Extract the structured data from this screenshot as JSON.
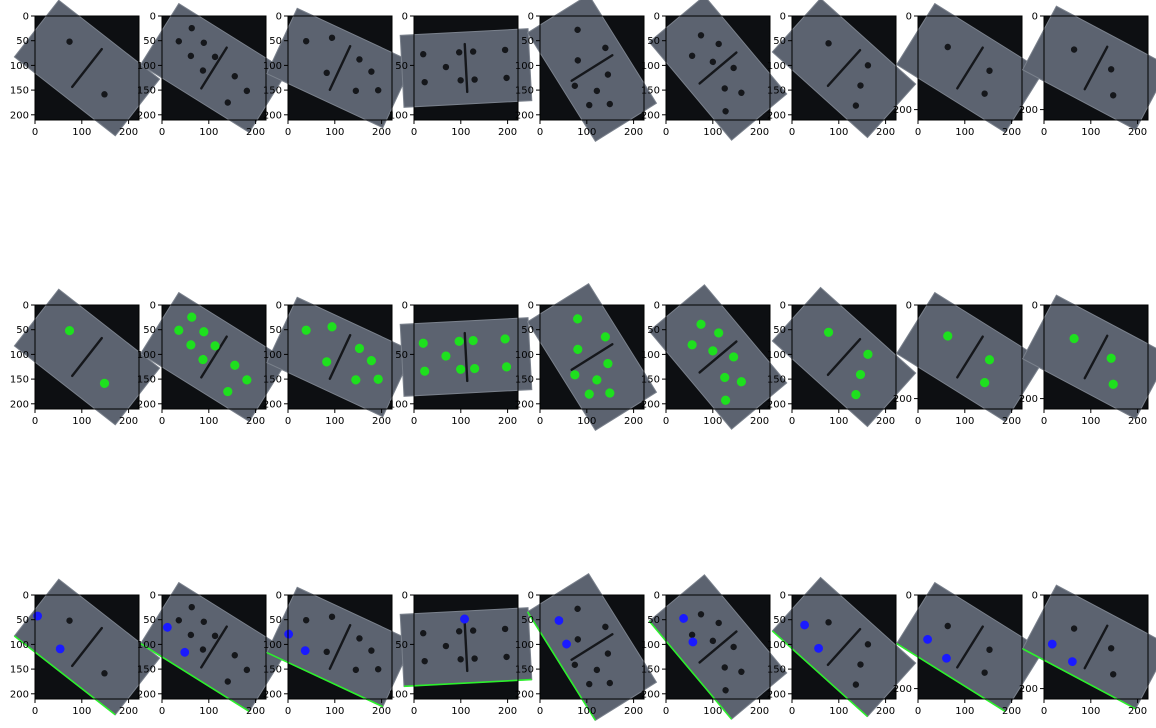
{
  "figure": {
    "rows": [
      "original",
      "pips-detected",
      "edge-and-points"
    ],
    "tiles": [
      {
        "ticks_x": [
          "0",
          "100",
          "200"
        ],
        "ticks_y": [
          "50",
          "100",
          "150",
          "200"
        ],
        "y_first_label": "0",
        "angle": 38,
        "pips": [
          [
            -30,
            -10
          ],
          [
            30,
            10
          ]
        ]
      },
      {
        "ticks_x": [
          "0",
          "100",
          "200"
        ],
        "ticks_y": [
          "50",
          "100",
          "150",
          "200"
        ],
        "y_first_label": "0",
        "angle": 32,
        "pips": [
          [
            -40,
            -22
          ],
          [
            -22,
            -16
          ],
          [
            -5,
            -10
          ],
          [
            -44,
            -4
          ],
          [
            -26,
            2
          ],
          [
            -8,
            8
          ],
          [
            22,
            -4
          ],
          [
            40,
            2
          ],
          [
            30,
            22
          ]
        ]
      },
      {
        "ticks_x": [
          "0",
          "100",
          "200"
        ],
        "ticks_y": [
          "50",
          "100",
          "150",
          "200"
        ],
        "y_first_label": "0",
        "angle": 25,
        "pips": [
          [
            -42,
            -10
          ],
          [
            -20,
            -24
          ],
          [
            -10,
            10
          ],
          [
            14,
            -16
          ],
          [
            30,
            -10
          ],
          [
            24,
            14
          ],
          [
            44,
            4
          ]
        ]
      },
      {
        "ticks_x": [
          "0",
          "100",
          "200"
        ],
        "ticks_y": [
          "50",
          "100"
        ],
        "y_first_label": "0",
        "angle": -3,
        "pips": [
          [
            -42,
            -16
          ],
          [
            -42,
            12
          ],
          [
            -20,
            -2
          ],
          [
            -6,
            -16
          ],
          [
            -6,
            12
          ],
          [
            8,
            -16
          ],
          [
            8,
            12
          ],
          [
            40,
            -16
          ],
          [
            40,
            12
          ]
        ]
      },
      {
        "ticks_x": [
          "0",
          "100",
          "200"
        ],
        "ticks_y": [
          "50",
          "100",
          "150",
          "200"
        ],
        "y_first_label": "0",
        "angle": 58,
        "pips": [
          [
            -40,
            -8
          ],
          [
            -10,
            -22
          ],
          [
            -14,
            8
          ],
          [
            14,
            -10
          ],
          [
            22,
            8
          ],
          [
            6,
            24
          ],
          [
            30,
            22
          ],
          [
            40,
            4
          ]
        ]
      },
      {
        "ticks_x": [
          "0",
          "100",
          "200"
        ],
        "ticks_y": [
          "50",
          "100",
          "150",
          "200"
        ],
        "y_first_label": "0",
        "angle": 50,
        "pips": [
          [
            -36,
            -8
          ],
          [
            -18,
            -16
          ],
          [
            -8,
            0
          ],
          [
            -26,
            12
          ],
          [
            10,
            -12
          ],
          [
            20,
            8
          ],
          [
            34,
            -2
          ],
          [
            38,
            22
          ]
        ]
      },
      {
        "ticks_x": [
          "0",
          "100",
          "200"
        ],
        "ticks_y": [
          "50",
          "100",
          "150",
          "200"
        ],
        "y_first_label": "0",
        "angle": 42,
        "pips": [
          [
            -28,
            -8
          ],
          [
            16,
            -18
          ],
          [
            24,
            2
          ],
          [
            34,
            20
          ]
        ]
      },
      {
        "ticks_x": [
          "0",
          "100",
          "200"
        ],
        "ticks_y": [
          "200"
        ],
        "y_first_label": "0",
        "angle": 32,
        "pips": [
          [
            -30,
            -6
          ],
          [
            18,
            -8
          ],
          [
            26,
            14
          ]
        ]
      },
      {
        "ticks_x": [
          "0",
          "100",
          "200"
        ],
        "ticks_y": [
          "200"
        ],
        "y_first_label": "0",
        "angle": 28,
        "pips": [
          [
            -28,
            -6
          ],
          [
            14,
            -6
          ],
          [
            28,
            16
          ]
        ]
      }
    ],
    "edge_points": [
      [
        [
          -58,
          6
        ],
        [
          -20,
          18
        ]
      ],
      [
        [
          -50,
          8
        ],
        [
          -22,
          20
        ]
      ],
      [
        [
          -52,
          10
        ],
        [
          -30,
          18
        ]
      ],
      [
        [
          0,
          -28
        ],
        [
          0,
          -28
        ]
      ],
      [
        [
          -40,
          14
        ],
        [
          -16,
          20
        ]
      ],
      [
        [
          -44,
          8
        ],
        [
          -20,
          16
        ]
      ],
      [
        [
          -44,
          10
        ],
        [
          -18,
          18
        ]
      ],
      [
        [
          -40,
          16
        ],
        [
          -14,
          22
        ]
      ],
      [
        [
          -40,
          18
        ],
        [
          -14,
          24
        ]
      ]
    ]
  }
}
